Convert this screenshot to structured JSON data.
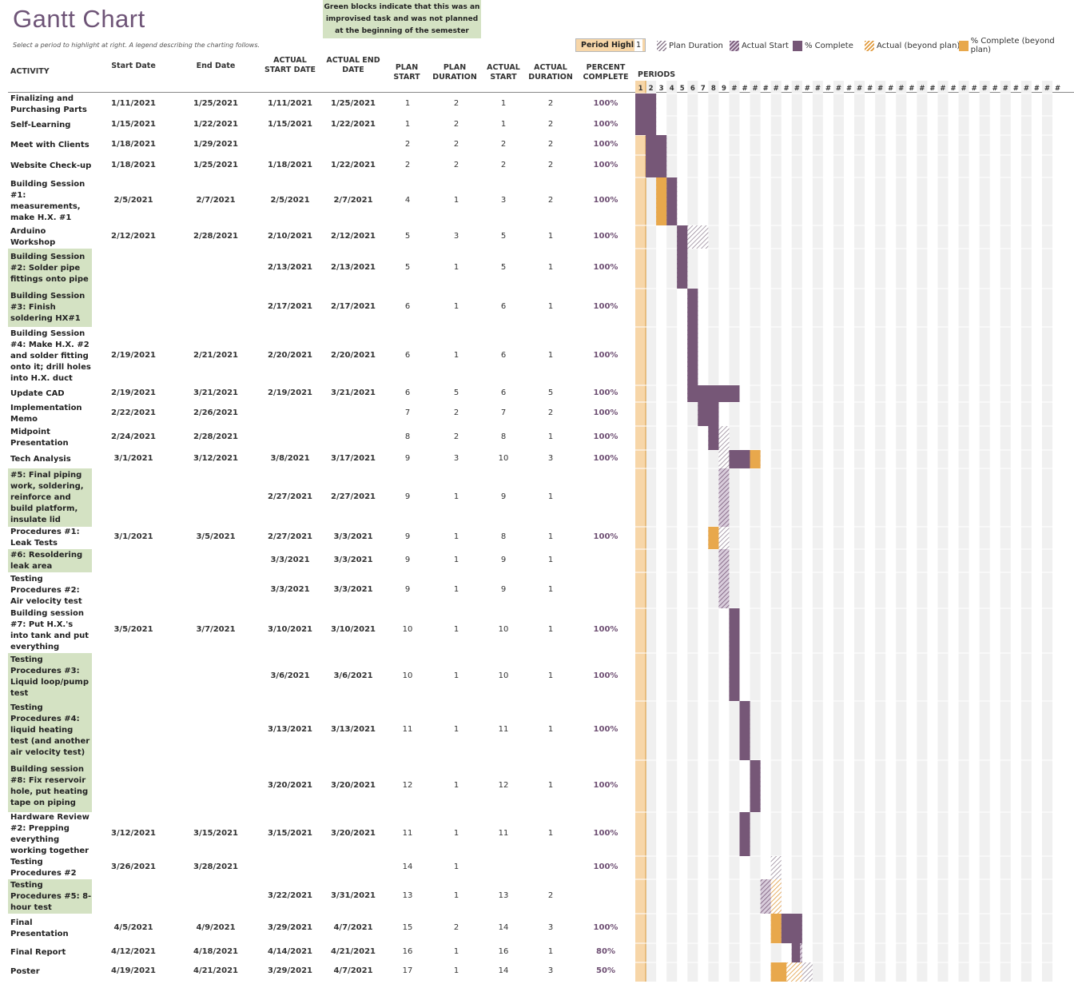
{
  "title": "Gantt Chart",
  "subtitle": "Select a period to highlight at right.  A legend describing the charting follows.",
  "note": "Green blocks indicate that this was an improvised task and was not planned at the beginning of the semester",
  "period_highlight": {
    "label": "Period Highlig",
    "value": "1"
  },
  "legend": [
    {
      "label": "Plan Duration",
      "style": "plan"
    },
    {
      "label": "Actual Start",
      "style": "actual"
    },
    {
      "label": "% Complete",
      "style": "complete"
    },
    {
      "label": "Actual (beyond plan)",
      "style": "beyond"
    },
    {
      "label": "% Complete (beyond plan)",
      "style": "completebeyond"
    }
  ],
  "columns": {
    "activity": "ACTIVITY",
    "start": "Start Date",
    "end": "End Date",
    "astart": "ACTUAL START DATE",
    "aend": "ACTUAL END DATE",
    "pstart": "PLAN START",
    "pdur": "PLAN DURATION",
    "acstart": "ACTUAL START",
    "acdur": "ACTUAL DURATION",
    "pct": "PERCENT COMPLETE",
    "periods": "PERIODS"
  },
  "period_labels": [
    "1",
    "2",
    "3",
    "4",
    "5",
    "6",
    "7",
    "8",
    "9",
    "#",
    "#",
    "#",
    "#",
    "#",
    "#",
    "#",
    "#",
    "#",
    "#",
    "#",
    "#",
    "#",
    "#",
    "#",
    "#",
    "#",
    "#",
    "#",
    "#",
    "#",
    "#",
    "#",
    "#",
    "#",
    "#",
    "#",
    "#",
    "#",
    "#",
    "#",
    "#"
  ],
  "colors": {
    "purple": "#765777",
    "orange": "#e8a84c",
    "green": "#d4e2c3",
    "highlight": "#f7d6a8",
    "title": "#6e5477",
    "gridstripe": "#f0f0f0"
  },
  "chart_data": {
    "type": "gantt",
    "tasks": [
      {
        "name": "Finalizing and Purchasing Parts",
        "start": "1/11/2021",
        "end": "1/25/2021",
        "astart": "1/11/2021",
        "aend": "1/25/2021",
        "pstart": "1",
        "pdur": "2",
        "acstart": "1",
        "acdur": "2",
        "pct": "100%",
        "green": false
      },
      {
        "name": "Self-Learning",
        "start": "1/15/2021",
        "end": "1/22/2021",
        "astart": "1/15/2021",
        "aend": "1/22/2021",
        "pstart": "1",
        "pdur": "2",
        "acstart": "1",
        "acdur": "2",
        "pct": "100%",
        "green": false
      },
      {
        "name": "Meet with Clients",
        "start": "1/18/2021",
        "end": "1/29/2021",
        "astart": "",
        "aend": "",
        "pstart": "2",
        "pdur": "2",
        "acstart": "2",
        "acdur": "2",
        "pct": "100%",
        "green": false
      },
      {
        "name": "Website Check-up",
        "start": "1/18/2021",
        "end": "1/25/2021",
        "astart": "1/18/2021",
        "aend": "1/22/2021",
        "pstart": "2",
        "pdur": "2",
        "acstart": "2",
        "acdur": "2",
        "pct": "100%",
        "green": false
      },
      {
        "name": "Building Session #1: measurements, make H.X. #1",
        "start": "2/5/2021",
        "end": "2/7/2021",
        "astart": "2/5/2021",
        "aend": "2/7/2021",
        "pstart": "4",
        "pdur": "1",
        "acstart": "3",
        "acdur": "2",
        "pct": "100%",
        "green": false
      },
      {
        "name": "Arduino Workshop",
        "start": "2/12/2021",
        "end": "2/28/2021",
        "astart": "2/10/2021",
        "aend": "2/12/2021",
        "pstart": "5",
        "pdur": "3",
        "acstart": "5",
        "acdur": "1",
        "pct": "100%",
        "green": false
      },
      {
        "name": "Building Session #2: Solder pipe fittings onto pipe",
        "start": "",
        "end": "",
        "astart": "2/13/2021",
        "aend": "2/13/2021",
        "pstart": "5",
        "pdur": "1",
        "acstart": "5",
        "acdur": "1",
        "pct": "100%",
        "green": true
      },
      {
        "name": "Building Session #3: Finish soldering HX#1",
        "start": "",
        "end": "",
        "astart": "2/17/2021",
        "aend": "2/17/2021",
        "pstart": "6",
        "pdur": "1",
        "acstart": "6",
        "acdur": "1",
        "pct": "100%",
        "green": true
      },
      {
        "name": "Building Session #4: Make H.X. #2 and solder fitting onto it; drill holes into H.X. duct",
        "start": "2/19/2021",
        "end": "2/21/2021",
        "astart": "2/20/2021",
        "aend": "2/20/2021",
        "pstart": "6",
        "pdur": "1",
        "acstart": "6",
        "acdur": "1",
        "pct": "100%",
        "green": false
      },
      {
        "name": "Update CAD",
        "start": "2/19/2021",
        "end": "3/21/2021",
        "astart": "2/19/2021",
        "aend": "3/21/2021",
        "pstart": "6",
        "pdur": "5",
        "acstart": "6",
        "acdur": "5",
        "pct": "100%",
        "green": false
      },
      {
        "name": "Implementation Memo",
        "start": "2/22/2021",
        "end": "2/26/2021",
        "astart": "",
        "aend": "",
        "pstart": "7",
        "pdur": "2",
        "acstart": "7",
        "acdur": "2",
        "pct": "100%",
        "green": false
      },
      {
        "name": "Midpoint Presentation",
        "start": "2/24/2021",
        "end": "2/28/2021",
        "astart": "",
        "aend": "",
        "pstart": "8",
        "pdur": "2",
        "acstart": "8",
        "acdur": "1",
        "pct": "100%",
        "green": false
      },
      {
        "name": "Tech Analysis",
        "start": "3/1/2021",
        "end": "3/12/2021",
        "astart": "3/8/2021",
        "aend": "3/17/2021",
        "pstart": "9",
        "pdur": "3",
        "acstart": "10",
        "acdur": "3",
        "pct": "100%",
        "green": false
      },
      {
        "name": "#5: Final piping work, soldering, reinforce and build platform, insulate lid",
        "start": "",
        "end": "",
        "astart": "2/27/2021",
        "aend": "2/27/2021",
        "pstart": "9",
        "pdur": "1",
        "acstart": "9",
        "acdur": "1",
        "pct": "",
        "green": true
      },
      {
        "name": "Procedures #1: Leak Tests",
        "start": "3/1/2021",
        "end": "3/5/2021",
        "astart": "2/27/2021",
        "aend": "3/3/2021",
        "pstart": "9",
        "pdur": "1",
        "acstart": "8",
        "acdur": "1",
        "pct": "100%",
        "green": false
      },
      {
        "name": "#6: Resoldering leak area",
        "start": "",
        "end": "",
        "astart": "3/3/2021",
        "aend": "3/3/2021",
        "pstart": "9",
        "pdur": "1",
        "acstart": "9",
        "acdur": "1",
        "pct": "",
        "green": true
      },
      {
        "name": "Testing Procedures #2: Air velocity test",
        "start": "",
        "end": "",
        "astart": "3/3/2021",
        "aend": "3/3/2021",
        "pstart": "9",
        "pdur": "1",
        "acstart": "9",
        "acdur": "1",
        "pct": "",
        "green": false
      },
      {
        "name": "Building session #7: Put H.X.'s into tank and put everything",
        "start": "3/5/2021",
        "end": "3/7/2021",
        "astart": "3/10/2021",
        "aend": "3/10/2021",
        "pstart": "10",
        "pdur": "1",
        "acstart": "10",
        "acdur": "1",
        "pct": "100%",
        "green": false
      },
      {
        "name": "Testing Procedures #3: Liquid loop/pump test",
        "start": "",
        "end": "",
        "astart": "3/6/2021",
        "aend": "3/6/2021",
        "pstart": "10",
        "pdur": "1",
        "acstart": "10",
        "acdur": "1",
        "pct": "100%",
        "green": true
      },
      {
        "name": "Testing Procedures #4: liquid heating test (and another air velocity test)",
        "start": "",
        "end": "",
        "astart": "3/13/2021",
        "aend": "3/13/2021",
        "pstart": "11",
        "pdur": "1",
        "acstart": "11",
        "acdur": "1",
        "pct": "100%",
        "green": true
      },
      {
        "name": "Building session #8: Fix reservoir hole, put heating tape on piping",
        "start": "",
        "end": "",
        "astart": "3/20/2021",
        "aend": "3/20/2021",
        "pstart": "12",
        "pdur": "1",
        "acstart": "12",
        "acdur": "1",
        "pct": "100%",
        "green": true
      },
      {
        "name": "Hardware Review #2: Prepping everything working together",
        "start": "3/12/2021",
        "end": "3/15/2021",
        "astart": "3/15/2021",
        "aend": "3/20/2021",
        "pstart": "11",
        "pdur": "1",
        "acstart": "11",
        "acdur": "1",
        "pct": "100%",
        "green": false
      },
      {
        "name": "Testing Procedures #2",
        "start": "3/26/2021",
        "end": "3/28/2021",
        "astart": "",
        "aend": "",
        "pstart": "14",
        "pdur": "1",
        "acstart": "",
        "acdur": "",
        "pct": "100%",
        "green": false
      },
      {
        "name": "Testing Procedures #5: 8-hour test",
        "start": "",
        "end": "",
        "astart": "3/22/2021",
        "aend": "3/31/2021",
        "pstart": "13",
        "pdur": "1",
        "acstart": "13",
        "acdur": "2",
        "pct": "",
        "green": true
      },
      {
        "name": "Final Presentation",
        "start": "4/5/2021",
        "end": "4/9/2021",
        "astart": "3/29/2021",
        "aend": "4/7/2021",
        "pstart": "15",
        "pdur": "2",
        "acstart": "14",
        "acdur": "3",
        "pct": "100%",
        "green": false
      },
      {
        "name": "Final Report",
        "start": "4/12/2021",
        "end": "4/18/2021",
        "astart": "4/14/2021",
        "aend": "4/21/2021",
        "pstart": "16",
        "pdur": "1",
        "acstart": "16",
        "acdur": "1",
        "pct": "80%",
        "green": false
      },
      {
        "name": "Poster",
        "start": "4/19/2021",
        "end": "4/21/2021",
        "astart": "3/29/2021",
        "aend": "4/7/2021",
        "pstart": "17",
        "pdur": "1",
        "acstart": "14",
        "acdur": "3",
        "pct": "50%",
        "green": false
      }
    ]
  }
}
